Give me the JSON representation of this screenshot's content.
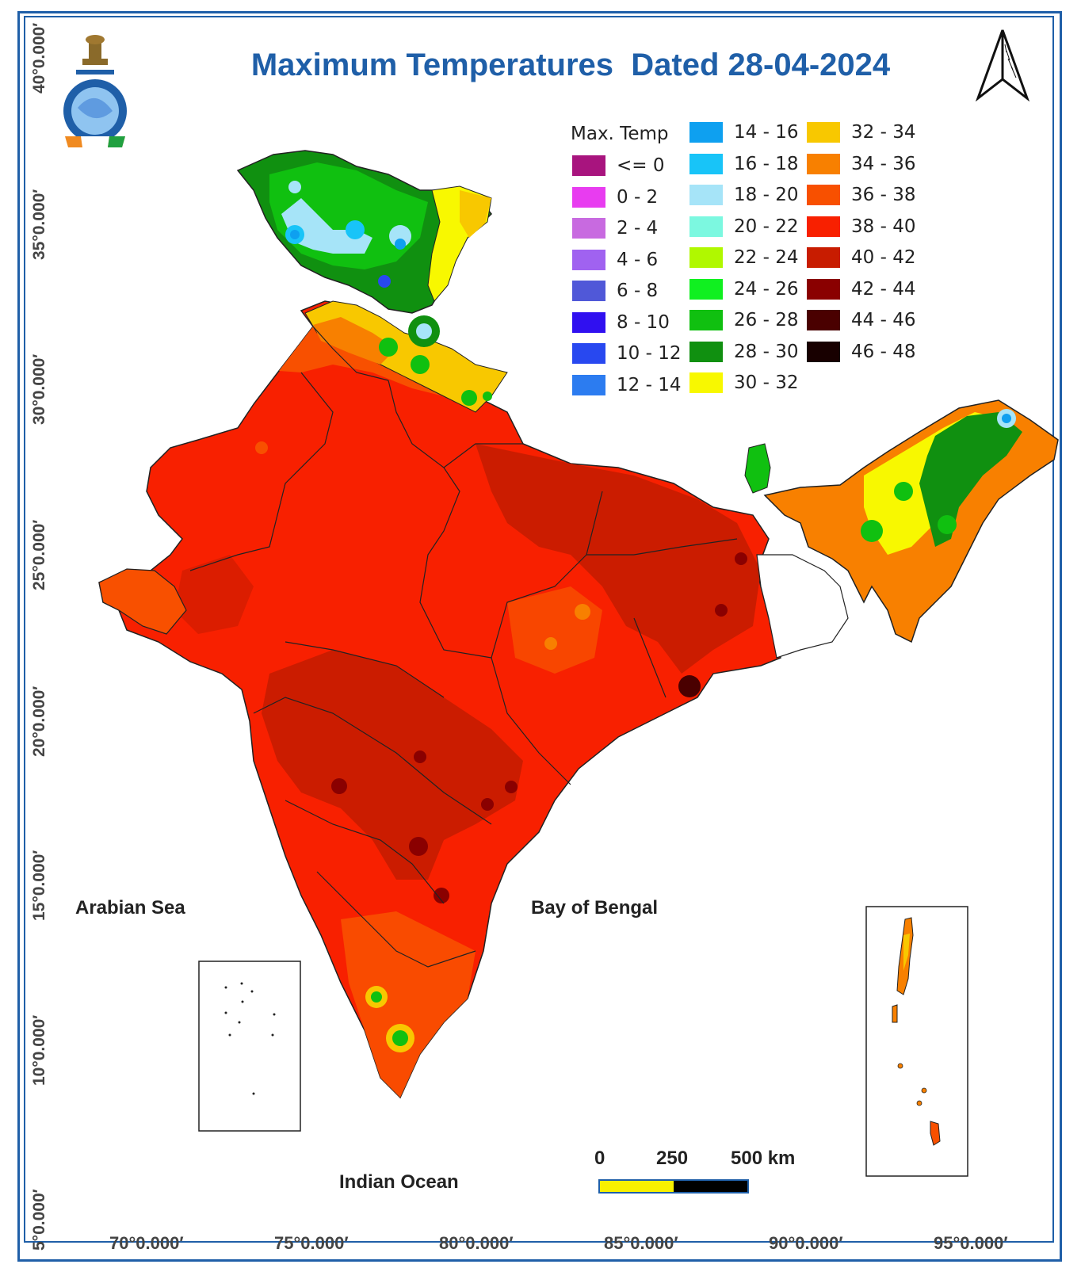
{
  "title": "Maximum Temperatures  Dated 28-04-2024",
  "legend": {
    "title": "Max. Temp",
    "items": [
      {
        "label": "<= 0",
        "color": "#a8147e"
      },
      {
        "label": "0 - 2",
        "color": "#e83cf0"
      },
      {
        "label": "2 - 4",
        "color": "#c86ae0"
      },
      {
        "label": "4 - 6",
        "color": "#a062f0"
      },
      {
        "label": "6 - 8",
        "color": "#5058d8"
      },
      {
        "label": "8 - 10",
        "color": "#3010f0"
      },
      {
        "label": "10 - 12",
        "color": "#2848f0"
      },
      {
        "label": "12 - 14",
        "color": "#2c7cf0"
      },
      {
        "label": "14 - 16",
        "color": "#0ea0f0"
      },
      {
        "label": "16 - 18",
        "color": "#18c4f8"
      },
      {
        "label": "18 - 20",
        "color": "#a6e4f8"
      },
      {
        "label": "20 - 22",
        "color": "#7cf8e0"
      },
      {
        "label": "22 - 24",
        "color": "#b0f800"
      },
      {
        "label": "24 - 26",
        "color": "#10f020"
      },
      {
        "label": "26 - 28",
        "color": "#10c010"
      },
      {
        "label": "28 - 30",
        "color": "#109010"
      },
      {
        "label": "30 - 32",
        "color": "#f8f800"
      },
      {
        "label": "32 - 34",
        "color": "#f8c800"
      },
      {
        "label": "34 - 36",
        "color": "#f88000"
      },
      {
        "label": "36 - 38",
        "color": "#f85000"
      },
      {
        "label": "38 - 40",
        "color": "#f82000"
      },
      {
        "label": "40 - 42",
        "color": "#c81c00"
      },
      {
        "label": "42 - 44",
        "color": "#8a0000"
      },
      {
        "label": "44 - 46",
        "color": "#4a0000"
      },
      {
        "label": "46 - 48",
        "color": "#180000"
      }
    ]
  },
  "lat_labels": [
    "40°0.000′",
    "35°0.000′",
    "30°0.000′",
    "25°0.000′",
    "20°0.000′",
    "15°0.000′",
    "10°0.000′",
    "5°0.000′"
  ],
  "lon_labels": [
    "70°0.000′",
    "75°0.000′",
    "80°0.000′",
    "85°0.000′",
    "90°0.000′",
    "95°0.000′"
  ],
  "seas": {
    "arabian": "Arabian Sea",
    "bengal": "Bay of Bengal",
    "indian": "Indian Ocean"
  },
  "scale": {
    "zero": "0",
    "mid": "250",
    "end": "500 km",
    "colors": [
      "#f8f000",
      "#000000"
    ]
  },
  "north_arrow": "north-arrow-icon",
  "emblem": "imd-emblem-icon"
}
